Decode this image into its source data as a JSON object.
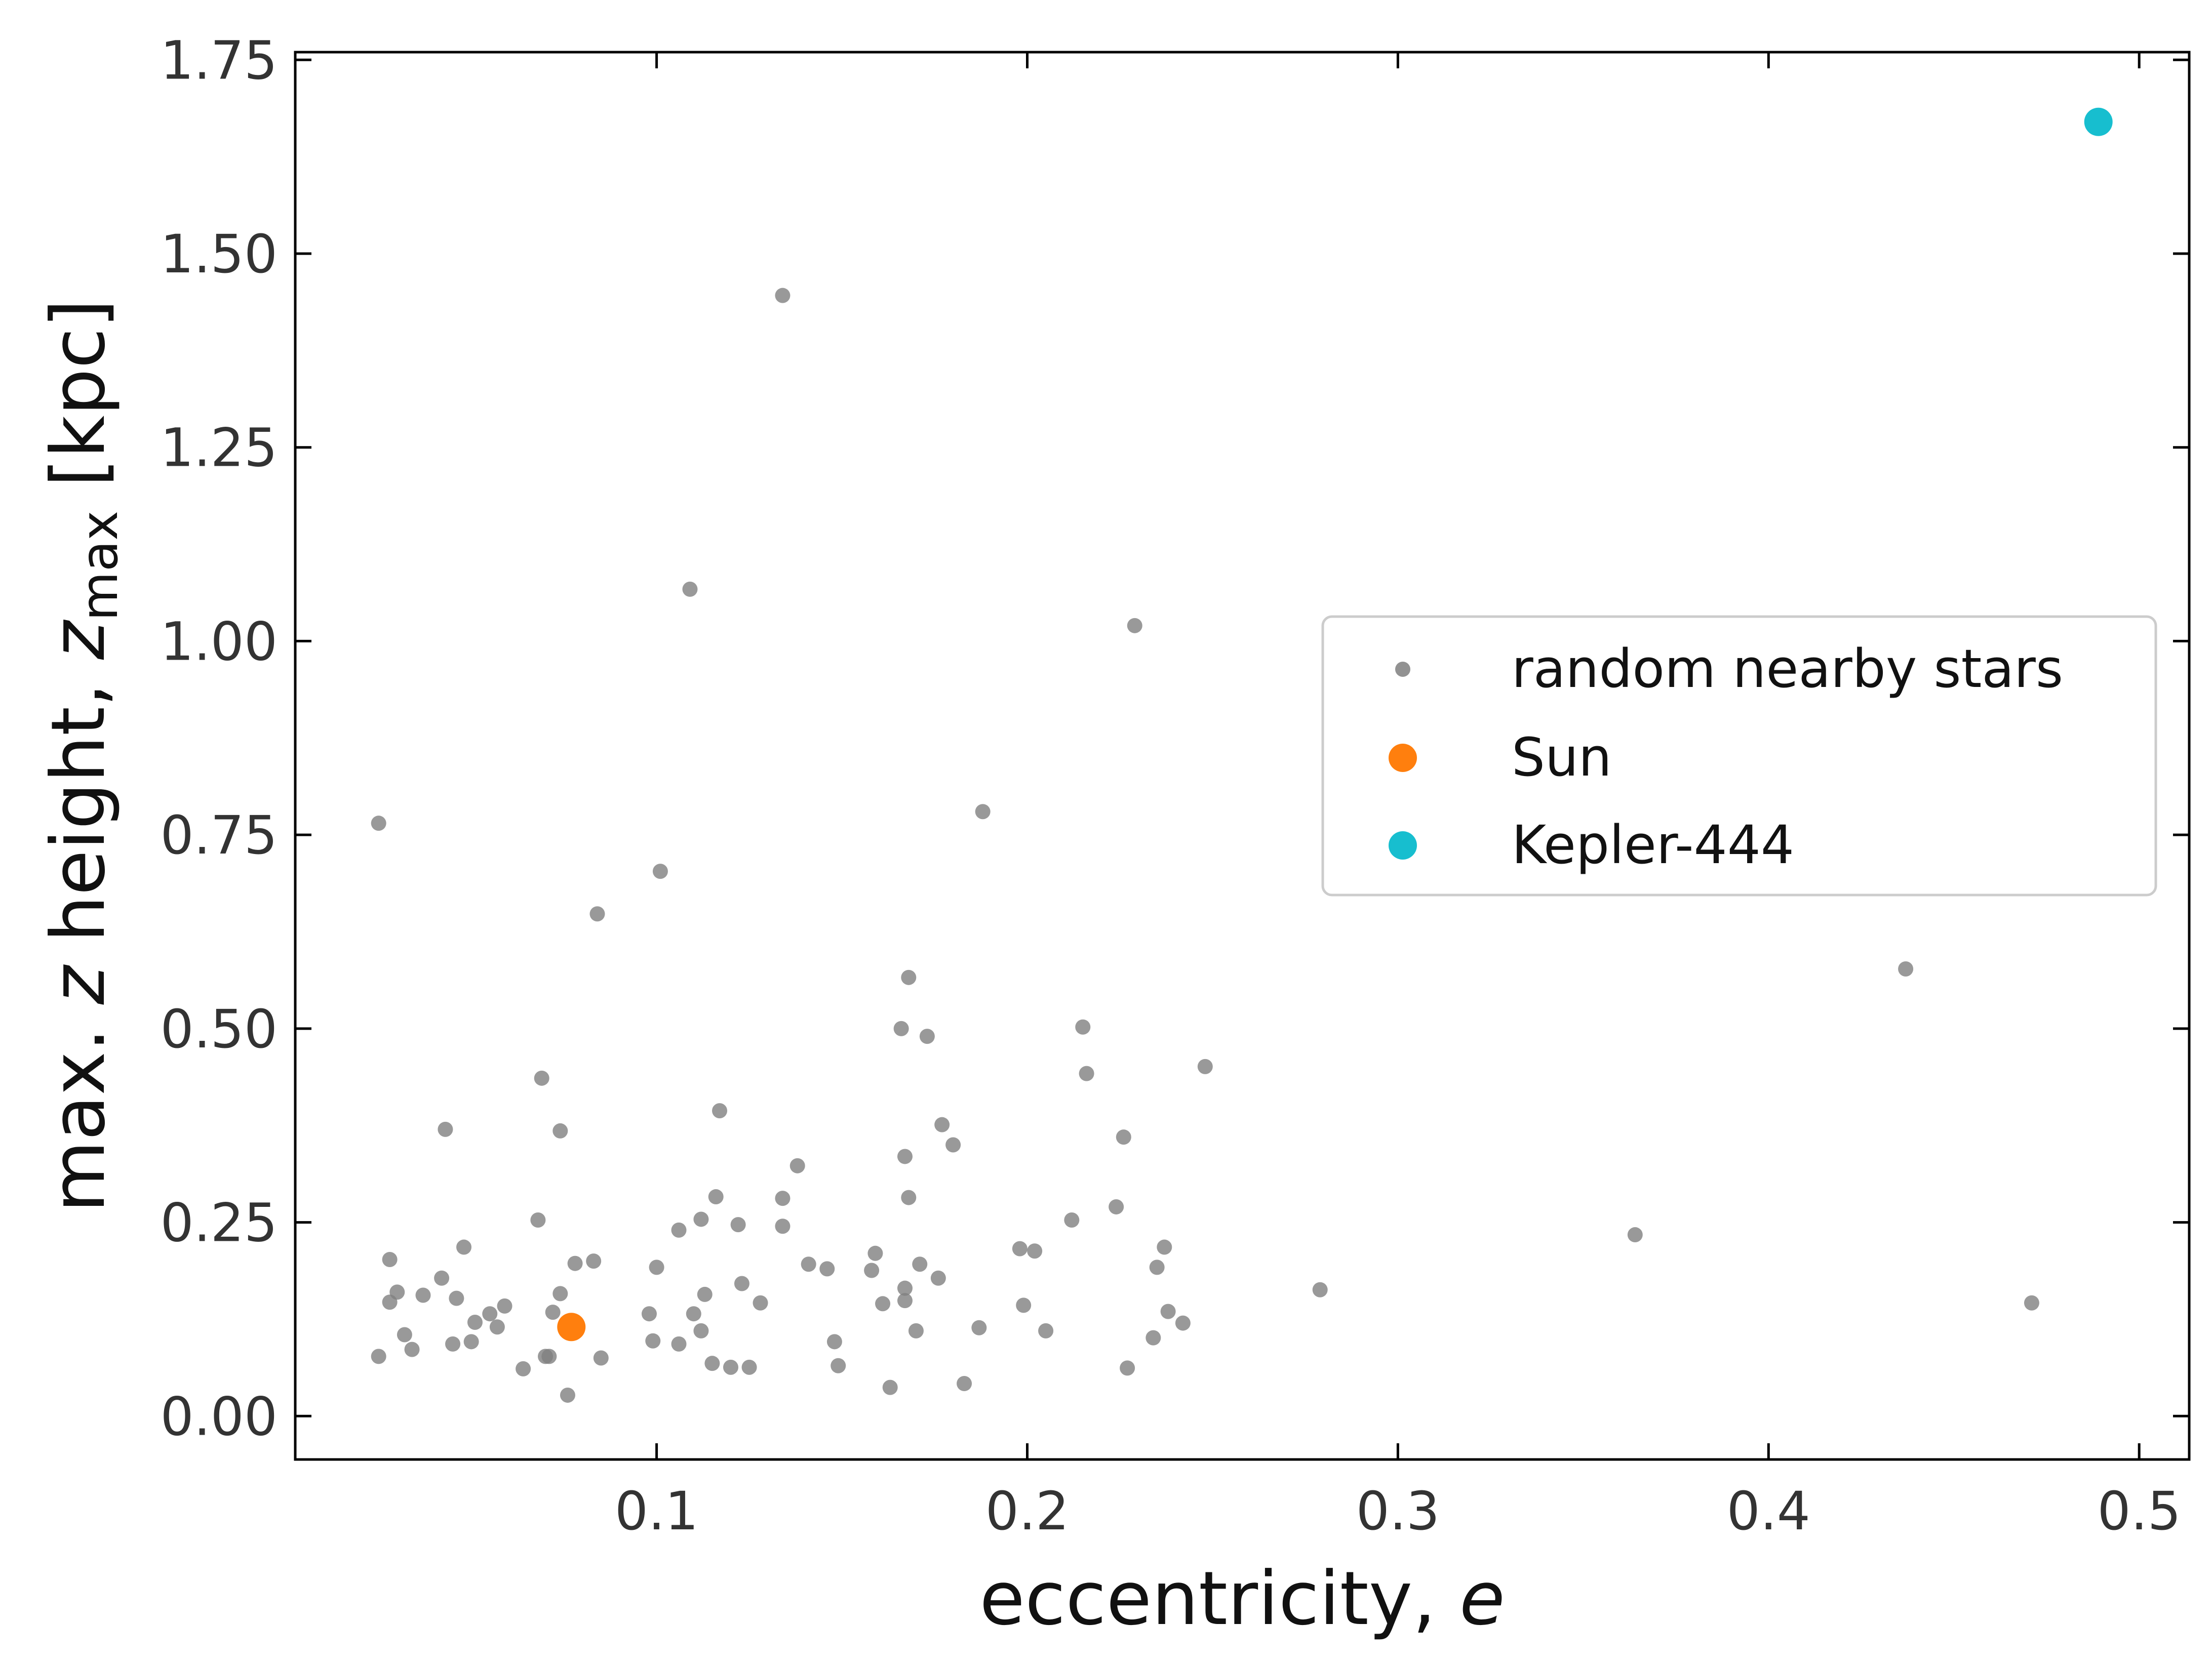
{
  "chart_data": {
    "type": "scatter",
    "title": "",
    "xlabel": "eccentricity, e",
    "xlabel_parts": {
      "text": "eccentricity, ",
      "var": "e"
    },
    "ylabel": "max. z height, z_max [kpc]",
    "ylabel_parts": {
      "prefix": "max. ",
      "var": "z",
      "mid": " height, ",
      "var2": "z",
      "sub": "max",
      "suffix": " [kpc]"
    },
    "xlim": [
      0.0025,
      0.5135
    ],
    "ylim": [
      -0.056,
      1.76
    ],
    "x_ticks": [
      0.1,
      0.2,
      0.3,
      0.4,
      0.5
    ],
    "x_tick_labels": [
      "0.1",
      "0.2",
      "0.3",
      "0.4",
      "0.5"
    ],
    "y_ticks": [
      0.0,
      0.25,
      0.5,
      0.75,
      1.0,
      1.25,
      1.5,
      1.75
    ],
    "y_tick_labels": [
      "0.00",
      "0.25",
      "0.50",
      "0.75",
      "1.00",
      "1.25",
      "1.50",
      "1.75"
    ],
    "grid": false,
    "legend_placement": "center-right",
    "series": [
      {
        "name": "random nearby stars",
        "color": "#7f7f7f",
        "marker": "small-dot",
        "points": [
          [
            0.025,
            0.765
          ],
          [
            0.025,
            0.077
          ],
          [
            0.028,
            0.147
          ],
          [
            0.028,
            0.202
          ],
          [
            0.03,
            0.16
          ],
          [
            0.032,
            0.105
          ],
          [
            0.034,
            0.086
          ],
          [
            0.037,
            0.156
          ],
          [
            0.042,
            0.178
          ],
          [
            0.043,
            0.37
          ],
          [
            0.045,
            0.093
          ],
          [
            0.046,
            0.152
          ],
          [
            0.048,
            0.218
          ],
          [
            0.05,
            0.096
          ],
          [
            0.051,
            0.121
          ],
          [
            0.055,
            0.132
          ],
          [
            0.057,
            0.115
          ],
          [
            0.059,
            0.142
          ],
          [
            0.064,
            0.061
          ],
          [
            0.068,
            0.253
          ],
          [
            0.069,
            0.436
          ],
          [
            0.07,
            0.077
          ],
          [
            0.071,
            0.077
          ],
          [
            0.072,
            0.134
          ],
          [
            0.074,
            0.368
          ],
          [
            0.074,
            0.158
          ],
          [
            0.076,
            0.027
          ],
          [
            0.078,
            0.197
          ],
          [
            0.083,
            0.2
          ],
          [
            0.084,
            0.648
          ],
          [
            0.085,
            0.075
          ],
          [
            0.098,
            0.132
          ],
          [
            0.099,
            0.097
          ],
          [
            0.1,
            0.192
          ],
          [
            0.101,
            0.703
          ],
          [
            0.106,
            0.093
          ],
          [
            0.106,
            0.24
          ],
          [
            0.109,
            1.067
          ],
          [
            0.11,
            0.132
          ],
          [
            0.112,
            0.254
          ],
          [
            0.112,
            0.11
          ],
          [
            0.113,
            0.157
          ],
          [
            0.115,
            0.068
          ],
          [
            0.116,
            0.283
          ],
          [
            0.117,
            0.394
          ],
          [
            0.12,
            0.063
          ],
          [
            0.122,
            0.247
          ],
          [
            0.123,
            0.171
          ],
          [
            0.125,
            0.063
          ],
          [
            0.128,
            0.146
          ],
          [
            0.134,
            0.281
          ],
          [
            0.134,
            0.245
          ],
          [
            0.134,
            1.446
          ],
          [
            0.138,
            0.323
          ],
          [
            0.141,
            0.196
          ],
          [
            0.146,
            0.19
          ],
          [
            0.148,
            0.096
          ],
          [
            0.149,
            0.065
          ],
          [
            0.158,
            0.188
          ],
          [
            0.159,
            0.21
          ],
          [
            0.161,
            0.145
          ],
          [
            0.163,
            0.037
          ],
          [
            0.166,
            0.5
          ],
          [
            0.167,
            0.165
          ],
          [
            0.167,
            0.335
          ],
          [
            0.167,
            0.149
          ],
          [
            0.168,
            0.566
          ],
          [
            0.168,
            0.282
          ],
          [
            0.17,
            0.11
          ],
          [
            0.171,
            0.196
          ],
          [
            0.173,
            0.49
          ],
          [
            0.176,
            0.178
          ],
          [
            0.177,
            0.376
          ],
          [
            0.18,
            0.35
          ],
          [
            0.183,
            0.042
          ],
          [
            0.187,
            0.114
          ],
          [
            0.188,
            0.78
          ],
          [
            0.198,
            0.216
          ],
          [
            0.199,
            0.143
          ],
          [
            0.202,
            0.213
          ],
          [
            0.205,
            0.11
          ],
          [
            0.212,
            0.253
          ],
          [
            0.215,
            0.502
          ],
          [
            0.216,
            0.442
          ],
          [
            0.224,
            0.27
          ],
          [
            0.226,
            0.36
          ],
          [
            0.227,
            0.062
          ],
          [
            0.229,
            1.02
          ],
          [
            0.234,
            0.101
          ],
          [
            0.235,
            0.192
          ],
          [
            0.237,
            0.218
          ],
          [
            0.238,
            0.135
          ],
          [
            0.242,
            0.12
          ],
          [
            0.248,
            0.451
          ],
          [
            0.279,
            0.163
          ],
          [
            0.364,
            0.234
          ],
          [
            0.437,
            0.577
          ],
          [
            0.471,
            0.146
          ]
        ]
      },
      {
        "name": "Sun",
        "color": "#ff7f0e",
        "marker": "large-dot",
        "points": [
          [
            0.077,
            0.115
          ]
        ]
      },
      {
        "name": "Kepler-444",
        "color": "#17becf",
        "marker": "large-dot",
        "points": [
          [
            0.489,
            1.67
          ]
        ]
      }
    ]
  }
}
